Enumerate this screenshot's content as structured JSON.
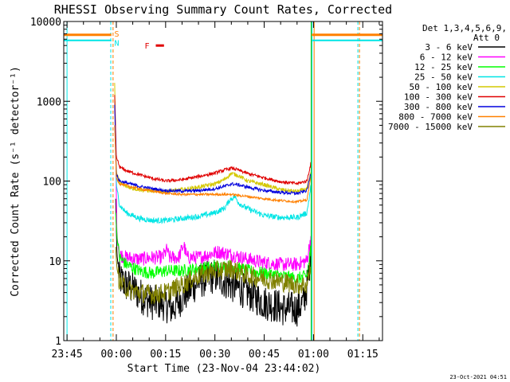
{
  "chart_data": {
    "type": "line",
    "title": "RHESSI Observing Summary Count Rates, Corrected",
    "xlabel": "Start Time (23-Nov-04 23:44:02)",
    "ylabel": "Corrected Count Rate (s⁻¹ detector⁻¹)",
    "yscale": "log",
    "ylim": [
      1,
      10000
    ],
    "xlim_minutes": [
      -1,
      96
    ],
    "x_tick_labels": [
      "23:45",
      "00:00",
      "00:15",
      "00:30",
      "00:45",
      "01:00",
      "01:15"
    ],
    "x_tick_minutes": [
      0,
      15,
      30,
      45,
      60,
      75,
      90
    ],
    "y_tick_labels": [
      "1",
      "10",
      "100",
      "1000",
      "10000"
    ],
    "y_tick_values": [
      1,
      10,
      100,
      1000,
      10000
    ],
    "legend_header": [
      "Det 1,3,4,5,6,9,",
      "Att 0"
    ],
    "legend_position": "right",
    "timestamp": "23-Oct-2021 04:51",
    "markers": {
      "S": {
        "label": "S",
        "color": "#ff8000",
        "y": 6800,
        "segments": [
          [
            -1,
            13.5
          ],
          [
            74.5,
            96
          ]
        ]
      },
      "N": {
        "label": "N",
        "color": "#00e5e5",
        "y": 5800,
        "segments": [
          [
            -1,
            13.5
          ],
          [
            74.5,
            96
          ]
        ]
      },
      "F": {
        "label": "F",
        "color": "#e00000",
        "y": 5000,
        "segment": [
          27,
          29.5
        ]
      }
    },
    "vertical_lines": [
      {
        "minute": 0,
        "color": "#00e5e5",
        "style": "solid"
      },
      {
        "minute": 13.3,
        "color": "#00e5e5",
        "style": "dashed"
      },
      {
        "minute": 14.0,
        "color": "#ff8000",
        "style": "dashed"
      },
      {
        "minute": 74.3,
        "color": "#00c000",
        "style": "solid"
      },
      {
        "minute": 74.6,
        "color": "#00e5e5",
        "style": "solid"
      },
      {
        "minute": 75.2,
        "color": "#ff8000",
        "style": "solid"
      },
      {
        "minute": 88.5,
        "color": "#00e5e5",
        "style": "dashed"
      },
      {
        "minute": 89.0,
        "color": "#ff8000",
        "style": "dashed"
      }
    ],
    "series": [
      {
        "name": "3 - 6 keV",
        "color": "#000000",
        "noise": 0.45,
        "points": [
          [
            14.8,
            60
          ],
          [
            15.2,
            12
          ],
          [
            16,
            6
          ],
          [
            18,
            5
          ],
          [
            20,
            4.5
          ],
          [
            23,
            3.5
          ],
          [
            26,
            3
          ],
          [
            29,
            3
          ],
          [
            32,
            2.5
          ],
          [
            35,
            3.5
          ],
          [
            40,
            5.5
          ],
          [
            45,
            6.5
          ],
          [
            50,
            5
          ],
          [
            55,
            4
          ],
          [
            60,
            3
          ],
          [
            63,
            2.8
          ],
          [
            66,
            2.5
          ],
          [
            70,
            2.5
          ],
          [
            72,
            3
          ],
          [
            73.5,
            6
          ],
          [
            74.2,
            14
          ]
        ]
      },
      {
        "name": "6 - 12 keV",
        "color": "#ff00ff",
        "noise": 0.18,
        "points": [
          [
            14.8,
            300
          ],
          [
            15.2,
            20
          ],
          [
            16,
            12
          ],
          [
            18,
            11
          ],
          [
            22,
            10.5
          ],
          [
            26,
            11
          ],
          [
            29,
            11
          ],
          [
            30.5,
            14
          ],
          [
            31,
            11
          ],
          [
            34,
            11
          ],
          [
            35.5,
            16
          ],
          [
            36.5,
            11
          ],
          [
            40,
            11
          ],
          [
            46,
            13
          ],
          [
            50,
            12
          ],
          [
            55,
            10.5
          ],
          [
            60,
            9.5
          ],
          [
            65,
            9
          ],
          [
            70,
            9
          ],
          [
            73,
            10
          ],
          [
            74.2,
            20
          ]
        ]
      },
      {
        "name": "12 - 25 keV",
        "color": "#00ff00",
        "noise": 0.16,
        "points": [
          [
            14.8,
            40
          ],
          [
            15.3,
            18
          ],
          [
            16,
            11
          ],
          [
            18,
            9
          ],
          [
            22,
            7.5
          ],
          [
            26,
            7
          ],
          [
            30,
            7.5
          ],
          [
            35,
            7.5
          ],
          [
            40,
            8
          ],
          [
            45,
            8.5
          ],
          [
            50,
            8.5
          ],
          [
            55,
            7.5
          ],
          [
            60,
            7
          ],
          [
            65,
            6.5
          ],
          [
            70,
            6
          ],
          [
            73,
            6.5
          ],
          [
            74.2,
            14
          ]
        ]
      },
      {
        "name": "25 - 50 keV",
        "color": "#00e5e5",
        "noise": 0.07,
        "points": [
          [
            14.6,
            1000
          ],
          [
            15.0,
            90
          ],
          [
            16,
            50
          ],
          [
            18,
            40
          ],
          [
            22,
            34
          ],
          [
            26,
            32
          ],
          [
            30,
            32
          ],
          [
            35,
            34
          ],
          [
            40,
            36
          ],
          [
            45,
            40
          ],
          [
            48,
            46
          ],
          [
            49.5,
            58
          ],
          [
            51,
            64
          ],
          [
            52.5,
            52
          ],
          [
            55,
            45
          ],
          [
            58,
            40
          ],
          [
            60,
            37
          ],
          [
            65,
            35
          ],
          [
            70,
            35
          ],
          [
            73,
            40
          ],
          [
            74.3,
            90
          ]
        ]
      },
      {
        "name": "50 - 100 keV",
        "color": "#d4c800",
        "noise": 0.05,
        "points": [
          [
            14.5,
            1700
          ],
          [
            15.0,
            130
          ],
          [
            16,
            95
          ],
          [
            18,
            85
          ],
          [
            22,
            78
          ],
          [
            26,
            75
          ],
          [
            30,
            74
          ],
          [
            35,
            78
          ],
          [
            40,
            84
          ],
          [
            45,
            92
          ],
          [
            48,
            105
          ],
          [
            50,
            125
          ],
          [
            52,
            118
          ],
          [
            55,
            100
          ],
          [
            60,
            90
          ],
          [
            65,
            78
          ],
          [
            70,
            74
          ],
          [
            73,
            80
          ],
          [
            74.3,
            130
          ]
        ]
      },
      {
        "name": "100 - 300 keV",
        "color": "#e00000",
        "noise": 0.04,
        "points": [
          [
            14.5,
            1200
          ],
          [
            15.0,
            200
          ],
          [
            16,
            150
          ],
          [
            18,
            135
          ],
          [
            22,
            120
          ],
          [
            26,
            108
          ],
          [
            30,
            100
          ],
          [
            35,
            104
          ],
          [
            40,
            114
          ],
          [
            45,
            126
          ],
          [
            48,
            138
          ],
          [
            50,
            145
          ],
          [
            52,
            138
          ],
          [
            55,
            124
          ],
          [
            60,
            110
          ],
          [
            65,
            98
          ],
          [
            70,
            93
          ],
          [
            73,
            100
          ],
          [
            74.3,
            175
          ]
        ]
      },
      {
        "name": "300 - 800 keV",
        "color": "#0000dd",
        "noise": 0.04,
        "points": [
          [
            14.5,
            900
          ],
          [
            15.0,
            120
          ],
          [
            16,
            100
          ],
          [
            18,
            95
          ],
          [
            22,
            86
          ],
          [
            26,
            80
          ],
          [
            30,
            76
          ],
          [
            35,
            75
          ],
          [
            40,
            76
          ],
          [
            45,
            80
          ],
          [
            48,
            86
          ],
          [
            50,
            92
          ],
          [
            52,
            90
          ],
          [
            55,
            84
          ],
          [
            60,
            76
          ],
          [
            65,
            72
          ],
          [
            70,
            70
          ],
          [
            73,
            76
          ],
          [
            74.3,
            130
          ]
        ]
      },
      {
        "name": "800 - 7000 keV",
        "color": "#ff8000",
        "noise": 0.03,
        "points": [
          [
            14.5,
            500
          ],
          [
            15.0,
            110
          ],
          [
            16,
            92
          ],
          [
            18,
            88
          ],
          [
            22,
            80
          ],
          [
            26,
            75
          ],
          [
            30,
            70
          ],
          [
            35,
            68
          ],
          [
            40,
            68
          ],
          [
            45,
            68
          ],
          [
            50,
            68
          ],
          [
            55,
            64
          ],
          [
            60,
            60
          ],
          [
            65,
            57
          ],
          [
            70,
            55
          ],
          [
            73,
            58
          ],
          [
            74.3,
            120
          ]
        ]
      },
      {
        "name": "7000 - 15000 keV",
        "color": "#808000",
        "noise": 0.25,
        "points": [
          [
            14.8,
            15
          ],
          [
            15.2,
            8
          ],
          [
            16,
            5.5
          ],
          [
            18,
            4.5
          ],
          [
            22,
            4
          ],
          [
            26,
            3.8
          ],
          [
            30,
            4
          ],
          [
            35,
            5
          ],
          [
            40,
            6.5
          ],
          [
            45,
            7.5
          ],
          [
            50,
            8
          ],
          [
            55,
            6.5
          ],
          [
            60,
            6
          ],
          [
            65,
            5.5
          ],
          [
            70,
            5
          ],
          [
            73,
            5
          ],
          [
            74.2,
            9
          ]
        ]
      }
    ]
  }
}
